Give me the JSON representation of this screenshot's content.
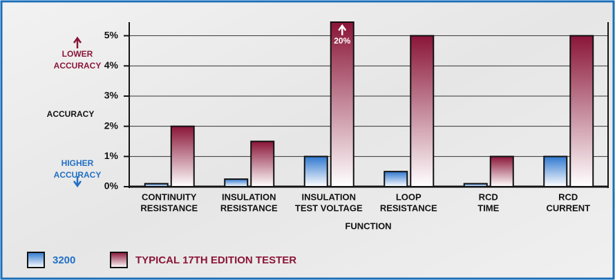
{
  "chart_data": {
    "type": "bar",
    "x_label": "FUNCTION",
    "annotations": {
      "upper": [
        "LOWER",
        "ACCURACY"
      ],
      "middle": "ACCURACY",
      "lower": [
        "HIGHER",
        "ACCURACY"
      ]
    },
    "categories": [
      [
        "CONTINUITY",
        "RESISTANCE"
      ],
      [
        "INSULATION",
        "RESISTANCE"
      ],
      [
        "INSULATION",
        "TEST VOLTAGE"
      ],
      [
        "LOOP",
        "RESISTANCE"
      ],
      [
        "RCD",
        "TIME"
      ],
      [
        "RCD",
        "CURRENT"
      ]
    ],
    "series": [
      {
        "name": "3200",
        "color": "#2f78cf",
        "label_color": "#1f6fc4",
        "values": [
          0.1,
          0.25,
          1,
          0.5,
          0.1,
          1
        ]
      },
      {
        "name": "TYPICAL 17TH EDITION TESTER",
        "color": "#8a1538",
        "label_color": "#8a1538",
        "values": [
          2,
          1.5,
          20,
          5,
          1,
          5
        ],
        "value_labels": [
          null,
          null,
          "20%",
          null,
          null,
          null
        ]
      }
    ],
    "ylim": [
      0,
      5.45
    ],
    "yticks": [
      {
        "value": 0,
        "label": "0%"
      },
      {
        "value": 1,
        "label": "1%"
      },
      {
        "value": 2,
        "label": "2%"
      },
      {
        "value": 3,
        "label": "3%"
      },
      {
        "value": 4,
        "label": "4%"
      },
      {
        "value": 5,
        "label": "5%"
      }
    ],
    "grid": true
  }
}
